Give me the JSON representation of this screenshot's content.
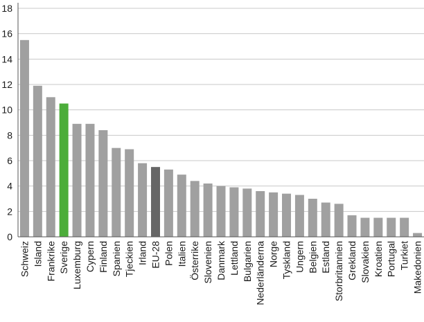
{
  "chart_data": {
    "type": "bar",
    "title": "",
    "xlabel": "",
    "ylabel": "",
    "ylim": [
      0,
      18
    ],
    "yticks": [
      0,
      2,
      4,
      6,
      8,
      10,
      12,
      14,
      16,
      18
    ],
    "grid": "horizontal",
    "categories": [
      "Schweiz",
      "Island",
      "Frankrike",
      "Sverige",
      "Luxemburg",
      "Cypern",
      "Finland",
      "Spanien",
      "Tjeckien",
      "Irland",
      "EU-28",
      "Polen",
      "Italien",
      "Österrike",
      "Slovenien",
      "Danmark",
      "Lettland",
      "Bulgarien",
      "Nederländerna",
      "Norge",
      "Tyskland",
      "Ungern",
      "Belgien",
      "Estland",
      "Storbritannien",
      "Grekland",
      "Slovakien",
      "Kroatien",
      "Portugal",
      "Turkiet",
      "Makedonien"
    ],
    "values": [
      15.5,
      11.9,
      11.0,
      10.5,
      8.9,
      8.9,
      8.4,
      7.0,
      6.9,
      5.8,
      5.5,
      5.3,
      4.9,
      4.4,
      4.2,
      4.0,
      3.9,
      3.8,
      3.6,
      3.5,
      3.4,
      3.3,
      3.0,
      2.7,
      2.6,
      1.7,
      1.5,
      1.5,
      1.5,
      1.5,
      0.3
    ],
    "colors": {
      "default": "#a0a0a0",
      "highlight": "#4cad3a",
      "aggregate": "#666666",
      "grid": "#c8c8c8",
      "axis": "#555555"
    },
    "highlight_category": "Sverige",
    "aggregate_category": "EU-28"
  }
}
